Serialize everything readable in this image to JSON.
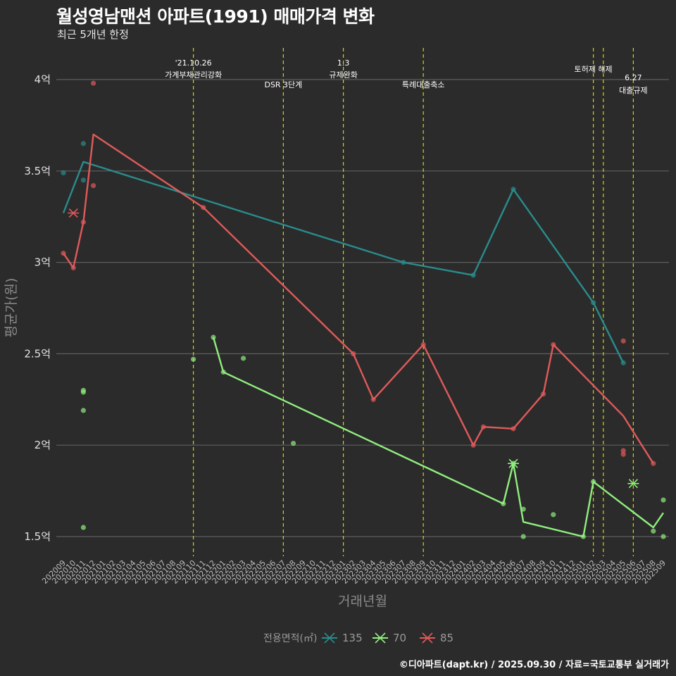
{
  "title": "월성영남맨션 아파트(1991) 매매가격 변화",
  "subtitle": "최근 5개년 한정",
  "caption": "©디아파트(dapt.kr) / 2025.09.30 / 자료=국토교통부 실거래가",
  "chart_data": {
    "type": "line",
    "title": "월성영남맨션 아파트(1991) 매매가격 변화",
    "xlabel": "거래년월",
    "ylabel": "평균가(원)",
    "ylim": [
      1.4,
      4.15
    ],
    "yticks": [
      {
        "v": 1.5,
        "label": "1.5억"
      },
      {
        "v": 2,
        "label": "2억"
      },
      {
        "v": 2.5,
        "label": "2.5억"
      },
      {
        "v": 3,
        "label": "3억"
      },
      {
        "v": 3.5,
        "label": "3.5억"
      },
      {
        "v": 4,
        "label": "4억"
      }
    ],
    "categories": [
      "202009",
      "202010",
      "202011",
      "202012",
      "202101",
      "202102",
      "202103",
      "202104",
      "202105",
      "202106",
      "202107",
      "202108",
      "202109",
      "202110",
      "202111",
      "202112",
      "202201",
      "202202",
      "202203",
      "202204",
      "202205",
      "202206",
      "202207",
      "202208",
      "202209",
      "202210",
      "202211",
      "202212",
      "202301",
      "202302",
      "202303",
      "202304",
      "202305",
      "202306",
      "202307",
      "202308",
      "202309",
      "202310",
      "202311",
      "202312",
      "202401",
      "202402",
      "202403",
      "202404",
      "202405",
      "202406",
      "202407",
      "202408",
      "202409",
      "202410",
      "202411",
      "202412",
      "202501",
      "202502",
      "202503",
      "202504",
      "202505",
      "202506",
      "202507",
      "202508",
      "202509"
    ],
    "legend_title": "전용면적(㎡)",
    "legend_position": "bottom",
    "series": [
      {
        "name": "135",
        "color": "#2a8c8c",
        "line": [
          [
            "202009",
            3.27
          ],
          [
            "202011",
            3.55
          ],
          [
            "202307",
            3.0
          ],
          [
            "202402",
            2.93
          ],
          [
            "202406",
            3.4
          ],
          [
            "202502",
            2.78
          ],
          [
            "202505",
            2.45
          ]
        ],
        "points": [
          [
            "202009",
            3.49
          ],
          [
            "202011",
            3.65
          ],
          [
            "202011",
            3.45
          ],
          [
            "202307",
            3.0
          ],
          [
            "202402",
            2.93
          ],
          [
            "202406",
            3.4
          ],
          [
            "202502",
            2.78
          ],
          [
            "202505",
            2.45
          ]
        ],
        "crosses": []
      },
      {
        "name": "70",
        "color": "#90ee7e",
        "line": [
          [
            "202112",
            2.59
          ],
          [
            "202201",
            2.4
          ],
          [
            "202405",
            1.68
          ],
          [
            "202406",
            1.9
          ],
          [
            "202407",
            1.58
          ],
          [
            "202501",
            1.5
          ],
          [
            "202502",
            1.8
          ],
          [
            "202508",
            1.55
          ],
          [
            "202509",
            1.63
          ]
        ],
        "points": [
          [
            "202011",
            2.3
          ],
          [
            "202011",
            2.29
          ],
          [
            "202011",
            2.19
          ],
          [
            "202011",
            1.55
          ],
          [
            "202110",
            2.47
          ],
          [
            "202112",
            2.59
          ],
          [
            "202201",
            2.4
          ],
          [
            "202203",
            2.475
          ],
          [
            "202208",
            2.01
          ],
          [
            "202405",
            1.68
          ],
          [
            "202406",
            1.9
          ],
          [
            "202407",
            1.65
          ],
          [
            "202407",
            1.5
          ],
          [
            "202410",
            1.62
          ],
          [
            "202501",
            1.5
          ],
          [
            "202502",
            1.8
          ],
          [
            "202508",
            1.53
          ],
          [
            "202509",
            1.7
          ],
          [
            "202509",
            1.5
          ]
        ],
        "crosses": [
          [
            "202406",
            1.9
          ],
          [
            "202506",
            1.79
          ]
        ]
      },
      {
        "name": "85",
        "color": "#e05a5a",
        "line": [
          [
            "202009",
            3.05
          ],
          [
            "202010",
            2.97
          ],
          [
            "202011",
            3.22
          ],
          [
            "202012",
            3.7
          ],
          [
            "202111",
            3.3
          ],
          [
            "202302",
            2.5
          ],
          [
            "202304",
            2.25
          ],
          [
            "202309",
            2.55
          ],
          [
            "202402",
            2.0
          ],
          [
            "202403",
            2.1
          ],
          [
            "202406",
            2.09
          ],
          [
            "202409",
            2.28
          ],
          [
            "202410",
            2.55
          ],
          [
            "202505",
            2.16
          ],
          [
            "202508",
            1.9
          ]
        ],
        "points": [
          [
            "202009",
            3.05
          ],
          [
            "202010",
            2.97
          ],
          [
            "202011",
            3.22
          ],
          [
            "202012",
            3.98
          ],
          [
            "202012",
            3.42
          ],
          [
            "202111",
            3.3
          ],
          [
            "202302",
            2.5
          ],
          [
            "202304",
            2.25
          ],
          [
            "202309",
            2.55
          ],
          [
            "202402",
            2.0
          ],
          [
            "202403",
            2.1
          ],
          [
            "202406",
            2.09
          ],
          [
            "202409",
            2.28
          ],
          [
            "202410",
            2.55
          ],
          [
            "202505",
            2.57
          ],
          [
            "202505",
            1.97
          ],
          [
            "202505",
            1.95
          ],
          [
            "202508",
            1.9
          ]
        ],
        "crosses": [
          [
            "202010",
            3.27
          ]
        ]
      }
    ],
    "events": [
      {
        "x": "202110",
        "lines": [
          "'21.10.26",
          "가계부채관리강화"
        ],
        "level": "high"
      },
      {
        "x": "202207",
        "lines": [
          "DSR 3단계"
        ],
        "level": "low"
      },
      {
        "x": "202301",
        "lines": [
          "1.3",
          "규제완화"
        ],
        "level": "high"
      },
      {
        "x": "202309",
        "lines": [
          "특례대출축소"
        ],
        "level": "low"
      },
      {
        "x": "202502",
        "lines": [
          "토허제 해제"
        ],
        "level": "mid"
      },
      {
        "x": "202503",
        "lines": [],
        "level": "none"
      },
      {
        "x": "202506",
        "lines": [
          "6.27",
          "대출규제"
        ],
        "level": "lower"
      }
    ]
  }
}
